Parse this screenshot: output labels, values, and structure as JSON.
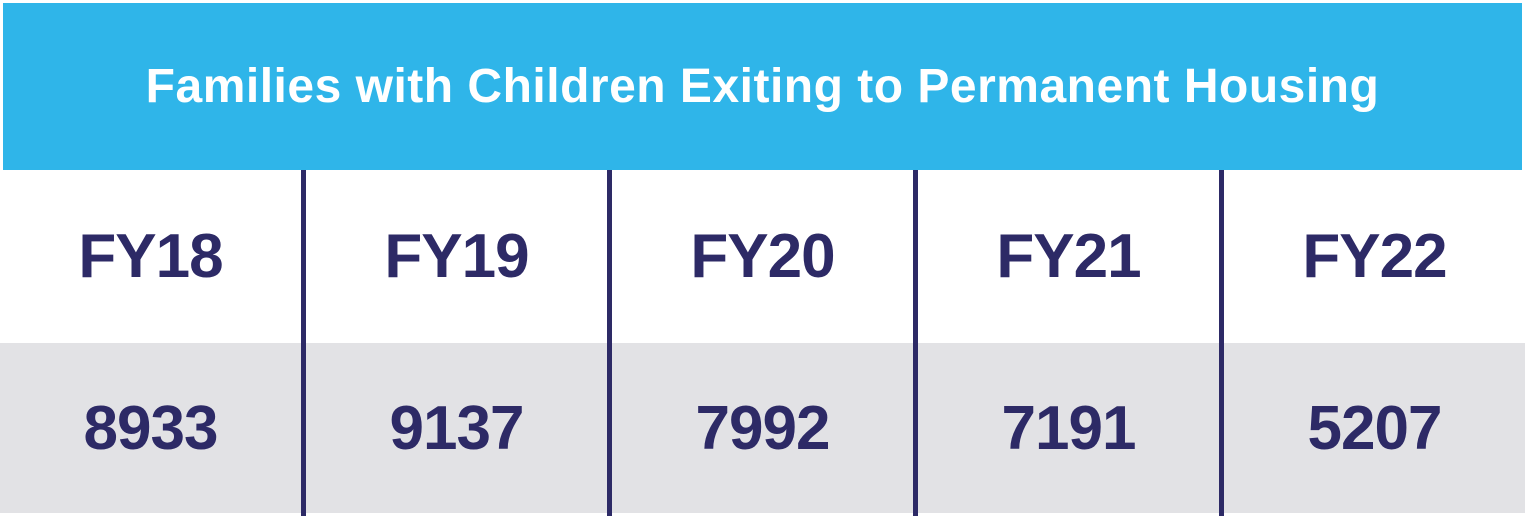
{
  "header": {
    "title": "Families with Children Exiting to Permanent Housing"
  },
  "columns": [
    {
      "label": "FY18",
      "value": "8933"
    },
    {
      "label": "FY19",
      "value": "9137"
    },
    {
      "label": "FY20",
      "value": "7992"
    },
    {
      "label": "FY21",
      "value": "7191"
    },
    {
      "label": "FY22",
      "value": "5207"
    }
  ],
  "colors": {
    "banner_blue": "#2FB5E9",
    "navy_text_and_dividers": "#2D2A66",
    "value_row_gray": "#E2E2E5",
    "title_text": "#FFFFFF"
  },
  "chart_data": {
    "type": "table",
    "title": "Families with Children Exiting to Permanent Housing",
    "categories": [
      "FY18",
      "FY19",
      "FY20",
      "FY21",
      "FY22"
    ],
    "values": [
      8933,
      9137,
      7992,
      7191,
      5207
    ],
    "layout_hints": {
      "header_row": "fiscal years on white background",
      "value_row": "counts on light gray background",
      "dividers": "vertical navy lines between columns",
      "banner": "blue title bar across full width"
    }
  }
}
